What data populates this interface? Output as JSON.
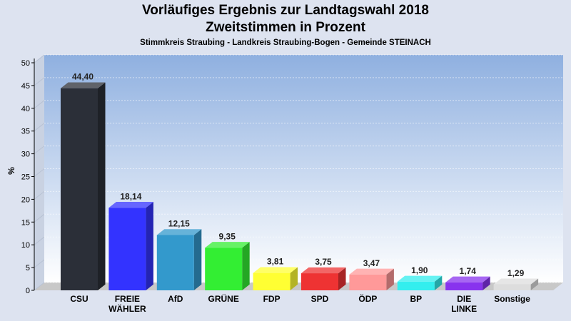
{
  "title": "Vorläufiges Ergebnis zur Landtagswahl 2018",
  "subtitle": "Zweitstimmen in Prozent",
  "subsubtitle": "Stimmkreis Straubing - Landkreis Straubing-Bogen - Gemeinde STEINACH",
  "chart_data": {
    "type": "bar",
    "title": "Vorläufiges Ergebnis zur Landtagswahl 2018",
    "subtitle": "Zweitstimmen in Prozent",
    "xlabel": "",
    "ylabel": "%",
    "ylim": [
      0,
      50
    ],
    "yticks": [
      "0",
      "5",
      "10",
      "15",
      "20",
      "25",
      "30",
      "35",
      "40",
      "45",
      "50"
    ],
    "grid": true,
    "categories": [
      [
        "CSU"
      ],
      [
        "FREIE",
        "WÄHLER"
      ],
      [
        "AfD"
      ],
      [
        "GRÜNE"
      ],
      [
        "FDP"
      ],
      [
        "SPD"
      ],
      [
        "ÖDP"
      ],
      [
        "BP"
      ],
      [
        "DIE",
        "LINKE"
      ],
      [
        "Sonstige"
      ]
    ],
    "values": [
      44.4,
      18.14,
      12.15,
      9.35,
      3.81,
      3.75,
      3.47,
      1.9,
      1.74,
      1.29
    ],
    "value_labels": [
      "44,40",
      "18,14",
      "12,15",
      "9,35",
      "3,81",
      "3,75",
      "3,47",
      "1,90",
      "1,74",
      "1,29"
    ],
    "colors": [
      "#2b2f38",
      "#3333ff",
      "#3399cc",
      "#33ee33",
      "#ffff33",
      "#ee3333",
      "#ff9999",
      "#33eeee",
      "#8833ee",
      "#dddddd"
    ]
  }
}
